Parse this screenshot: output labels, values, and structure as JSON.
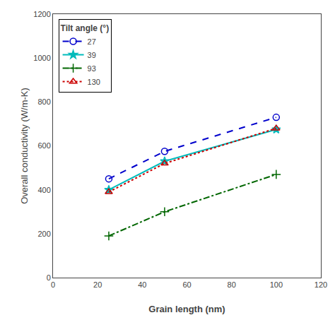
{
  "chart_data": {
    "type": "line",
    "x": [
      25,
      50,
      100
    ],
    "series": [
      {
        "name": "27",
        "values": [
          450,
          575,
          730
        ],
        "color": "#0000cc",
        "line_style": "dashed",
        "marker": "circle-open"
      },
      {
        "name": "39",
        "values": [
          400,
          530,
          675
        ],
        "color": "#00bbbb",
        "line_style": "solid",
        "marker": "star"
      },
      {
        "name": "93",
        "values": [
          190,
          300,
          470
        ],
        "color": "#006600",
        "line_style": "dashdot",
        "marker": "cross"
      },
      {
        "name": "130",
        "values": [
          390,
          520,
          680
        ],
        "color": "#cc0000",
        "line_style": "dotted",
        "marker": "triangle-open"
      }
    ],
    "x_label": "Grain length (nm)",
    "y_label": "Overall conductivity (W/m-K)",
    "legend_title": "Tilt angle (°)",
    "xlim": [
      0,
      120
    ],
    "ylim": [
      0,
      1200
    ],
    "xticks": [
      0,
      20,
      40,
      60,
      80,
      100,
      120
    ],
    "yticks": [
      0,
      200,
      400,
      600,
      800,
      1000,
      1200
    ],
    "grid": false,
    "legend": "upper left"
  }
}
